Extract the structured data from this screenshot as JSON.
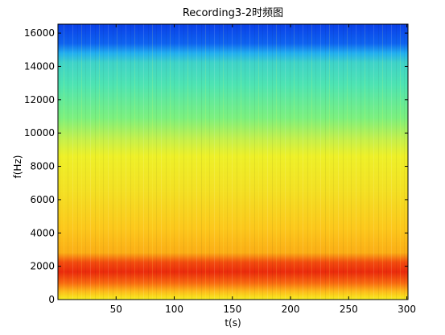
{
  "chart_data": {
    "type": "heatmap",
    "title": "Recording3-2时频图",
    "xlabel": "t(s)",
    "ylabel": "f(Hz)",
    "xlim": [
      0,
      301
    ],
    "ylim": [
      0,
      16537
    ],
    "x_ticks": [
      50,
      100,
      150,
      200,
      250,
      300
    ],
    "y_ticks": [
      0,
      2000,
      4000,
      6000,
      8000,
      10000,
      12000,
      14000,
      16000
    ],
    "colormap": "jet",
    "bands": [
      {
        "f_from": 0,
        "f_to": 1000,
        "level": "yellow-orange"
      },
      {
        "f_from": 1000,
        "f_to": 3000,
        "level": "red"
      },
      {
        "f_from": 3000,
        "f_to": 10000,
        "level": "orange-yellow"
      },
      {
        "f_from": 10000,
        "f_to": 14800,
        "level": "cyan-green"
      },
      {
        "f_from": 14800,
        "f_to": 16537,
        "level": "blue"
      }
    ],
    "grid": false
  }
}
